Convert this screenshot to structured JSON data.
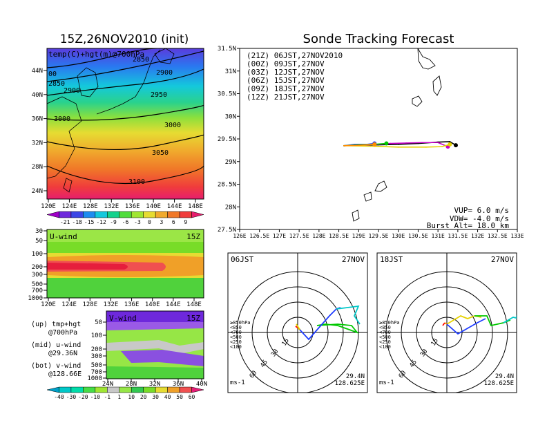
{
  "left_title": "15Z,26NOV2010 (init)",
  "main_title": "Sonde Tracking Forecast",
  "map700": {
    "label": "temp(C)+hgt(m)@700hPa",
    "x_ticks": [
      "120E",
      "124E",
      "128E",
      "132E",
      "136E",
      "140E",
      "144E",
      "148E"
    ],
    "y_ticks": [
      "24N",
      "28N",
      "32N",
      "36N",
      "40N",
      "44N"
    ],
    "contour_labels": [
      "2850",
      "2900",
      "2950",
      "3000",
      "3050",
      "3100",
      "2850",
      "2900",
      "3000",
      "3000",
      "00"
    ],
    "colorbar_labels": [
      "-21",
      "-18",
      "-15",
      "-12",
      "-9",
      "-6",
      "-3",
      "0",
      "3",
      "6",
      "9"
    ],
    "colorbar_colors": [
      "#a000c8",
      "#6e28dc",
      "#3c46e6",
      "#1e8cf0",
      "#14c8dc",
      "#14d28c",
      "#50dc3c",
      "#a0e632",
      "#e6dc32",
      "#f0aa2d",
      "#f07828",
      "#f03c3c",
      "#e61e6e"
    ]
  },
  "uwind": {
    "label": "U-wind",
    "time": "15Z",
    "y_ticks": [
      "30",
      "50",
      "100",
      "200",
      "300",
      "500",
      "700",
      "1000"
    ],
    "x_ticks": [
      "120E",
      "124E",
      "128E",
      "132E",
      "136E",
      "140E",
      "144E",
      "148E"
    ]
  },
  "vwind": {
    "label": "V-wind",
    "time": "15Z",
    "y_ticks": [
      "50",
      "100",
      "200",
      "300",
      "500",
      "700",
      "1000"
    ],
    "x_ticks": [
      "24N",
      "28N",
      "32N",
      "36N",
      "40N"
    ],
    "colorbar_labels": [
      "-40",
      "-30",
      "-20",
      "-10",
      "-1",
      "1",
      "10",
      "20",
      "30",
      "40",
      "50",
      "60"
    ],
    "colorbar_colors": [
      "#00a0c8",
      "#00c8c8",
      "#00dcaa",
      "#46dc46",
      "#a0e632",
      "#c8c8c8",
      "#96e646",
      "#32c850",
      "#78dc28",
      "#e6dc32",
      "#f0a028",
      "#f05050",
      "#e61e78"
    ]
  },
  "legend_notes": [
    {
      "a": "(up) tmp+hgt",
      "b": "@700hPa"
    },
    {
      "a": "(mid) u-wind",
      "b": "@29.36N"
    },
    {
      "a": "(bot) v-wind",
      "b": "@128.66E"
    }
  ],
  "track_map": {
    "x_ticks": [
      "126E",
      "126.5E",
      "127E",
      "127.5E",
      "128E",
      "128.5E",
      "129E",
      "129.5E",
      "130E",
      "130.5E",
      "131E",
      "131.5E",
      "132E",
      "132.5E",
      "133E"
    ],
    "y_ticks": [
      "31.5N",
      "31N",
      "30.5N",
      "30N",
      "29.5N",
      "29N",
      "28.5N",
      "28N",
      "27.5N"
    ],
    "legend": [
      {
        "label": "(21Z) 06JST,27NOV2010",
        "color": "#000000"
      },
      {
        "label": "(00Z) 09JST,27NOV",
        "color": "#c800c8"
      },
      {
        "label": "(03Z) 12JST,27NOV",
        "color": "#1e3cff"
      },
      {
        "label": "(06Z) 15JST,27NOV",
        "color": "#00c800"
      },
      {
        "label": "(09Z) 18JST,27NOV",
        "color": "#e6d200"
      },
      {
        "label": "(12Z) 21JST,27NOV",
        "color": "#ff8c00"
      }
    ],
    "params": [
      "VUP= 6.0 m/s",
      "VDW= -4.0 m/s",
      "Burst Alt= 18.0 km"
    ]
  },
  "chart_data": [
    {
      "type": "line",
      "title": "Sonde Tracking Forecast",
      "xlim": [
        126,
        133
      ],
      "ylim": [
        27.5,
        31.5
      ],
      "series": [
        {
          "name": "(21Z) 06JST,27NOV2010",
          "x": [
            128.63,
            129.0,
            129.5,
            130.0,
            130.5,
            131.0,
            131.3,
            131.45
          ],
          "y": [
            29.35,
            29.36,
            29.37,
            29.38,
            29.4,
            29.43,
            29.44,
            29.36
          ]
        },
        {
          "name": "(00Z) 09JST,27NOV",
          "x": [
            128.63,
            129.0,
            129.5,
            129.8,
            130.2,
            130.6,
            131.0,
            131.25
          ],
          "y": [
            29.35,
            29.36,
            29.38,
            29.4,
            29.41,
            29.42,
            29.42,
            29.33
          ]
        },
        {
          "name": "(03Z) 12JST,27NOV",
          "x": [
            128.63,
            128.9,
            129.2,
            129.4
          ],
          "y": [
            29.35,
            29.38,
            29.38,
            29.4
          ]
        },
        {
          "name": "(06Z) 15JST,27NOV",
          "x": [
            128.63,
            129.0,
            129.4,
            129.7
          ],
          "y": [
            29.35,
            29.37,
            29.38,
            29.4
          ]
        },
        {
          "name": "(09Z) 18JST,27NOV",
          "x": [
            128.63,
            129.3,
            130.0,
            130.7,
            131.1,
            131.3
          ],
          "y": [
            29.35,
            29.34,
            29.32,
            29.32,
            29.33,
            29.38
          ]
        },
        {
          "name": "(12Z) 21JST,27NOV",
          "x": [
            128.63,
            129.0,
            129.4
          ],
          "y": [
            29.35,
            29.36,
            29.38
          ]
        }
      ]
    }
  ],
  "hodo_left": {
    "time": "06JST",
    "date": "27NOV",
    "rings": [
      "15",
      "30",
      "45",
      "60"
    ],
    "levels": [
      {
        "label": "≥850hPa",
        "color": "#ff0000"
      },
      {
        "label": "<850",
        "color": "#ff8c00"
      },
      {
        "label": "<700",
        "color": "#e6d200"
      },
      {
        "label": "<500",
        "color": "#00c800"
      },
      {
        "label": "<250",
        "color": "#00c8c8"
      },
      {
        "label": "<100",
        "color": "#1e3cff"
      }
    ],
    "unit": "ms-1",
    "lat": "29.4N",
    "lon": "128.625E"
  },
  "hodo_right": {
    "time": "18JST",
    "date": "27NOV",
    "rings": [
      "15",
      "30",
      "45",
      "60"
    ],
    "levels": [
      {
        "label": "≥850hPa",
        "color": "#ff0000"
      },
      {
        "label": "<850",
        "color": "#ff8c00"
      },
      {
        "label": "<700",
        "color": "#e6d200"
      },
      {
        "label": "<500",
        "color": "#00c800"
      },
      {
        "label": "<250",
        "color": "#00c8c8"
      },
      {
        "label": "<100",
        "color": "#1e3cff"
      }
    ],
    "unit": "ms-1",
    "lat": "29.4N",
    "lon": "128.625E"
  }
}
